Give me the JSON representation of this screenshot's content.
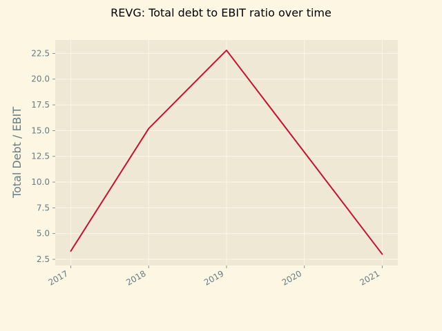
{
  "chart_data": {
    "type": "line",
    "title": "REVG: Total debt to EBIT ratio over time",
    "xlabel": "",
    "ylabel": "Total Debt / EBIT",
    "x": [
      "2017",
      "2018",
      "2019",
      "2020",
      "2021"
    ],
    "x_tick_labels": [
      "2017",
      "2018",
      "2019",
      "2020",
      "2021"
    ],
    "y_ticks": [
      "2.5",
      "5.0",
      "7.5",
      "10.0",
      "12.5",
      "15.0",
      "17.5",
      "20.0",
      "22.5"
    ],
    "series": [
      {
        "values": [
          3.3,
          15.2,
          22.8,
          12.9,
          3.0
        ],
        "color": "#c8102e"
      }
    ],
    "ylim": [
      1.9,
      23.8
    ],
    "xlim": [
      2016.8,
      2021.2
    ],
    "grid": true,
    "legend": "none",
    "colors": {
      "figure_background": "#fdf6e3",
      "plot_background": "#eee8d5",
      "grid": "#fdf6e3",
      "tick_text": "#657b83",
      "line": "#c8102e"
    }
  }
}
